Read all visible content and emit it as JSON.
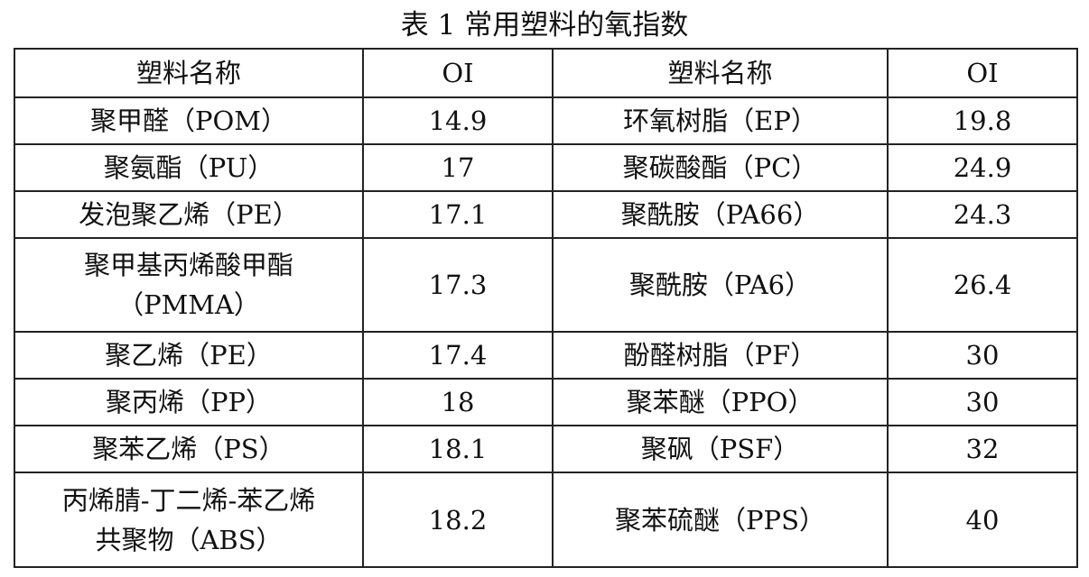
{
  "title": "表 1 常用塑料的氧指数",
  "headers": [
    "塑料名称",
    "OI",
    "塑料名称",
    "OI"
  ],
  "rows": [
    {
      "name1": "聚甲醛（POM）",
      "oi1": "14.9",
      "name2": "环氧树脂（EP）",
      "oi2": "19.8"
    },
    {
      "name1": "聚氨酯（PU）",
      "oi1": "17",
      "name2": "聚碳酸酯（PC）",
      "oi2": "24.9"
    },
    {
      "name1": "发泡聚乙烯（PE）",
      "oi1": "17.1",
      "name2": "聚酰胺（PA66）",
      "oi2": "24.3"
    },
    {
      "name1": "聚甲基丙烯酸甲酯",
      "name1b": "（PMMA）",
      "oi1": "17.3",
      "name2": "聚酰胺（PA6）",
      "oi2": "26.4"
    },
    {
      "name1": "聚乙烯（PE）",
      "oi1": "17.4",
      "name2": "酚醛树脂（PF）",
      "oi2": "30"
    },
    {
      "name1": "聚丙烯（PP）",
      "oi1": "18",
      "name2": "聚苯醚（PPO）",
      "oi2": "30"
    },
    {
      "name1": "聚苯乙烯（PS）",
      "oi1": "18.1",
      "name2": "聚砜（PSF）",
      "oi2": "32"
    },
    {
      "name1": "丙烯腈-丁二烯-苯乙烯",
      "name1b": "共聚物（ABS）",
      "oi1": "18.2",
      "name2": "聚苯硫醚（PPS）",
      "oi2": "40"
    }
  ]
}
